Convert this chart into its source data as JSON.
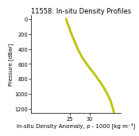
{
  "title": "11558: In-situ Density Profiles",
  "xlabel": "In-situ Density Anomaly, ρ - 1000 [kg m⁻³]",
  "ylabel": "Pressure [dBar]",
  "xlim": [
    15,
    38
  ],
  "ylim": [
    1250,
    -50
  ],
  "xticks": [
    25,
    30
  ],
  "yticks": [
    0,
    200,
    400,
    600,
    800,
    1000,
    1200
  ],
  "line_color_outer": "#c8b400",
  "line_color_inner": "#aadd00",
  "background": "#ffffff",
  "title_fontsize": 6.0,
  "label_fontsize": 5.0,
  "tick_fontsize": 4.8,
  "pressure": [
    0,
    5,
    10,
    20,
    30,
    50,
    75,
    100,
    125,
    150,
    175,
    200,
    225,
    250,
    300,
    350,
    400,
    450,
    500,
    550,
    600,
    650,
    700,
    750,
    800,
    850,
    900,
    950,
    1000,
    1050,
    1100,
    1150,
    1200,
    1250
  ],
  "density": [
    24.0,
    24.05,
    24.1,
    24.15,
    24.2,
    24.3,
    24.5,
    24.7,
    24.9,
    25.0,
    25.2,
    25.4,
    25.6,
    25.8,
    26.2,
    26.6,
    27.0,
    27.5,
    28.0,
    28.6,
    29.3,
    30.0,
    30.8,
    31.5,
    32.2,
    32.9,
    33.5,
    34.1,
    34.6,
    35.1,
    35.5,
    35.8,
    36.1,
    36.3
  ]
}
